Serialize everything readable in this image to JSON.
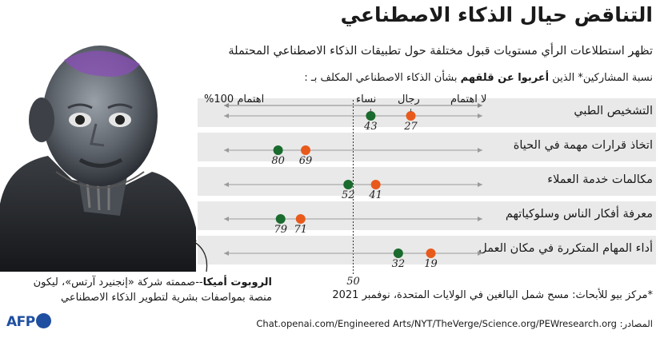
{
  "title": "التناقض حيال الذكاء الاصطناعي",
  "subtitle": "تظهر استطلاعات الرأي مستويات قبول مختلفة حول تطبيقات الذكاء الاصطناعي المحتملة",
  "question": {
    "before": "نسبة المشاركين* الذين ",
    "bold": "أعربوا عن قلقهم",
    "after": " بشأن الذكاء الاصطناعي المكلف بـ :"
  },
  "headers": {
    "left": "اهتمام 100%",
    "right": "لا اهتمام",
    "women": "نساء",
    "men": "رجال"
  },
  "chart_data": {
    "type": "dot",
    "xlim": [
      100,
      0
    ],
    "reference_line": 50,
    "reference_label": "50",
    "categories": [
      "التشخيص الطبي",
      "اتخاذ قرارات مهمة في الحياة",
      "مكالمات خدمة العملاء",
      "معرفة أفكار الناس وسلوكياتهم",
      "أداء المهام المتكررة في مكان العمل"
    ],
    "series": [
      {
        "name": "نساء",
        "color": "#1a6b2e",
        "values": [
          43,
          80,
          52,
          79,
          32
        ]
      },
      {
        "name": "رجال",
        "color": "#e85a1b",
        "values": [
          27,
          69,
          41,
          71,
          19
        ]
      }
    ]
  },
  "robot_caption": {
    "bold": "الروبوت أميكا",
    "text": "--صممته شركة «إنجنيرد آرتس»، ليكون منصة بمواصفات بشرية لتطوير الذكاء الاصطناعي"
  },
  "footnote": "*مركز بيو للأبحاث: مسح شمل البالغين في الولايات المتحدة، نوفمبر 2021",
  "source": "Chat.openai.com/Engineered Arts/NYT/TheVerge/Science.org/PEWresearch.org :المصادر",
  "logo": "AFP"
}
